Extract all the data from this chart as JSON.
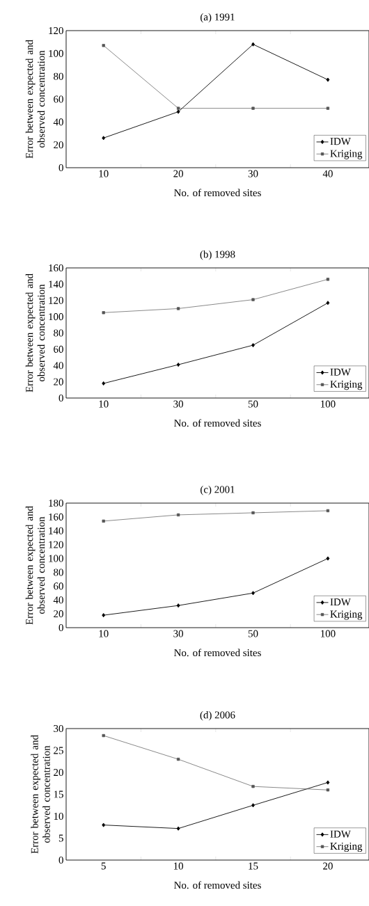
{
  "chart_data": [
    {
      "type": "line",
      "title": "(a) 1991",
      "xlabel": "No. of removed sites",
      "ylabel": "Error between expected and observed concentration",
      "categories": [
        "10",
        "20",
        "30",
        "40"
      ],
      "ylim": [
        0,
        120
      ],
      "yticks": [
        0,
        20,
        40,
        60,
        80,
        100,
        120
      ],
      "legend": "bottom right",
      "series": [
        {
          "name": "IDW",
          "color": "#000000",
          "marker": "diamond",
          "values": [
            26,
            49,
            108,
            77
          ]
        },
        {
          "name": "Kriging",
          "color": "#555555",
          "marker": "square",
          "values": [
            107,
            52,
            52,
            52
          ]
        }
      ]
    },
    {
      "type": "line",
      "title": "(b) 1998",
      "xlabel": "No. of removed sites",
      "ylabel": "Error between expected and observed concentration",
      "categories": [
        "10",
        "30",
        "50",
        "100"
      ],
      "ylim": [
        0,
        160
      ],
      "yticks": [
        0,
        20,
        40,
        60,
        80,
        100,
        120,
        140,
        160
      ],
      "legend": "bottom right",
      "series": [
        {
          "name": "IDW",
          "color": "#000000",
          "marker": "diamond",
          "values": [
            18,
            41,
            65,
            117
          ]
        },
        {
          "name": "Kriging",
          "color": "#555555",
          "marker": "square",
          "values": [
            105,
            110,
            121,
            146
          ]
        }
      ]
    },
    {
      "type": "line",
      "title": "(c) 2001",
      "xlabel": "No. of removed sites",
      "ylabel": "Error between expected and observed concentration",
      "categories": [
        "10",
        "30",
        "50",
        "100"
      ],
      "ylim": [
        0,
        180
      ],
      "yticks": [
        0,
        20,
        40,
        60,
        80,
        100,
        120,
        140,
        160,
        180
      ],
      "legend": "bottom right",
      "series": [
        {
          "name": "IDW",
          "color": "#000000",
          "marker": "diamond",
          "values": [
            18,
            32,
            50,
            100
          ]
        },
        {
          "name": "Kriging",
          "color": "#555555",
          "marker": "square",
          "values": [
            154,
            163,
            166,
            169
          ]
        }
      ]
    },
    {
      "type": "line",
      "title": "(d) 2006",
      "xlabel": "No. of removed sites",
      "ylabel": "Error between expected and observed concentration",
      "categories": [
        "5",
        "10",
        "15",
        "20"
      ],
      "ylim": [
        0,
        30
      ],
      "yticks": [
        0,
        5,
        10,
        15,
        20,
        25,
        30
      ],
      "legend": "bottom right",
      "series": [
        {
          "name": "IDW",
          "color": "#000000",
          "marker": "diamond",
          "values": [
            8,
            7.2,
            12.5,
            17.7
          ]
        },
        {
          "name": "Kriging",
          "color": "#555555",
          "marker": "square",
          "values": [
            28.4,
            23,
            16.8,
            16
          ]
        }
      ]
    }
  ]
}
